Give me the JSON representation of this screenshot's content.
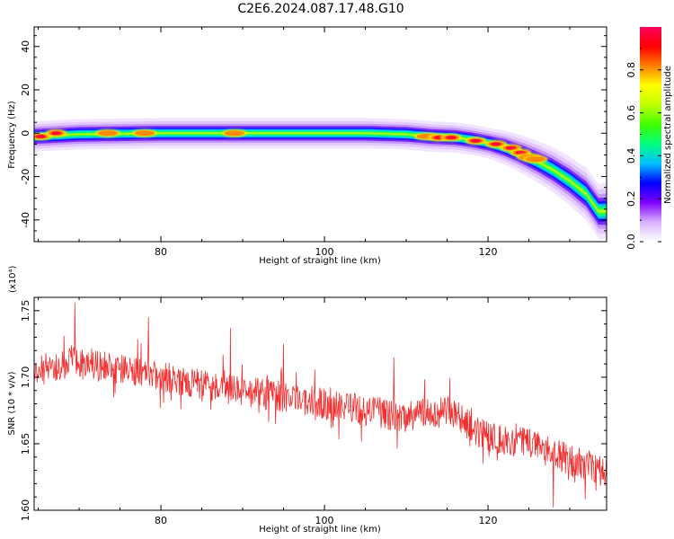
{
  "figure": {
    "title": "C2E6.2024.087.17.48.G10"
  },
  "chart_data": [
    {
      "type": "heatmap",
      "name": "spectrogram",
      "xlabel": "Height of straight line (km)",
      "ylabel": "Frequency (Hz)",
      "xlim": [
        64.5,
        134.5
      ],
      "ylim": [
        -50,
        49
      ],
      "xticks": [
        80,
        100,
        120
      ],
      "yticks": [
        40,
        20,
        0,
        -20,
        -40
      ],
      "colorbar": {
        "label": "Normalized spectral amplitude",
        "range": [
          0.0,
          1.0
        ],
        "ticks": [
          "0.0",
          "0.2",
          "0.4",
          "0.6",
          "0.8"
        ],
        "colormap": [
          "#ffffff",
          "#d9b3ff",
          "#8000ff",
          "#0000ff",
          "#00c0ff",
          "#00ff80",
          "#40ff00",
          "#c0ff00",
          "#ffff00",
          "#ff8000",
          "#ff0000",
          "#ff0060"
        ]
      },
      "ridge": {
        "x": [
          64.5,
          70,
          80,
          90,
          100,
          105,
          110,
          113,
          116,
          118,
          120,
          122,
          124,
          126,
          128,
          130,
          132,
          133.5
        ],
        "y": [
          -1.5,
          -0.5,
          0,
          0,
          0,
          0,
          -0.5,
          -1.5,
          -2,
          -3,
          -4.5,
          -6.5,
          -9.5,
          -13,
          -17,
          -22,
          -28,
          -36
        ]
      },
      "peaks": [
        {
          "x": 65.3,
          "y": -1.5,
          "amp": 1.0
        },
        {
          "x": 67.2,
          "y": 0.0,
          "amp": 1.0
        },
        {
          "x": 73.5,
          "y": 0.0,
          "amp": 0.85
        },
        {
          "x": 78.0,
          "y": 0.0,
          "amp": 0.8
        },
        {
          "x": 89.0,
          "y": 0.0,
          "amp": 0.8
        },
        {
          "x": 112.5,
          "y": -1.5,
          "amp": 0.85
        },
        {
          "x": 114.0,
          "y": -2.0,
          "amp": 1.0
        },
        {
          "x": 115.5,
          "y": -2.0,
          "amp": 1.0
        },
        {
          "x": 118.5,
          "y": -3.5,
          "amp": 1.0
        },
        {
          "x": 121.0,
          "y": -5.0,
          "amp": 1.0
        },
        {
          "x": 122.8,
          "y": -6.8,
          "amp": 1.0
        },
        {
          "x": 124.0,
          "y": -9.0,
          "amp": 0.95
        },
        {
          "x": 125.0,
          "y": -11.0,
          "amp": 0.9
        },
        {
          "x": 125.8,
          "y": -12.0,
          "amp": 0.85
        }
      ]
    },
    {
      "type": "line",
      "name": "snr",
      "xlabel": "Height of straight line (km)",
      "ylabel": "SNR (10 * v/v)",
      "y_multiplier": "(x10⁴)",
      "xlim": [
        64.5,
        134.5
      ],
      "ylim": [
        1.6,
        1.76
      ],
      "xticks": [
        80,
        100,
        120
      ],
      "yticks": [
        1.6,
        1.65,
        1.7,
        1.75
      ],
      "color": "#f03030",
      "trend": {
        "x": [
          64.5,
          70,
          80,
          90,
          100,
          110,
          115,
          120,
          125,
          130,
          134.5
        ],
        "y": [
          1.705,
          1.712,
          1.7,
          1.69,
          1.68,
          1.67,
          1.675,
          1.655,
          1.65,
          1.638,
          1.628
        ]
      },
      "notable_spikes": [
        {
          "x": 69.5,
          "y": 1.756
        },
        {
          "x": 78.5,
          "y": 1.745
        },
        {
          "x": 88.5,
          "y": 1.737
        },
        {
          "x": 95.0,
          "y": 1.725
        },
        {
          "x": 108.5,
          "y": 1.715
        },
        {
          "x": 128.0,
          "y": 1.602
        }
      ],
      "noise_amplitude": 0.012
    }
  ]
}
